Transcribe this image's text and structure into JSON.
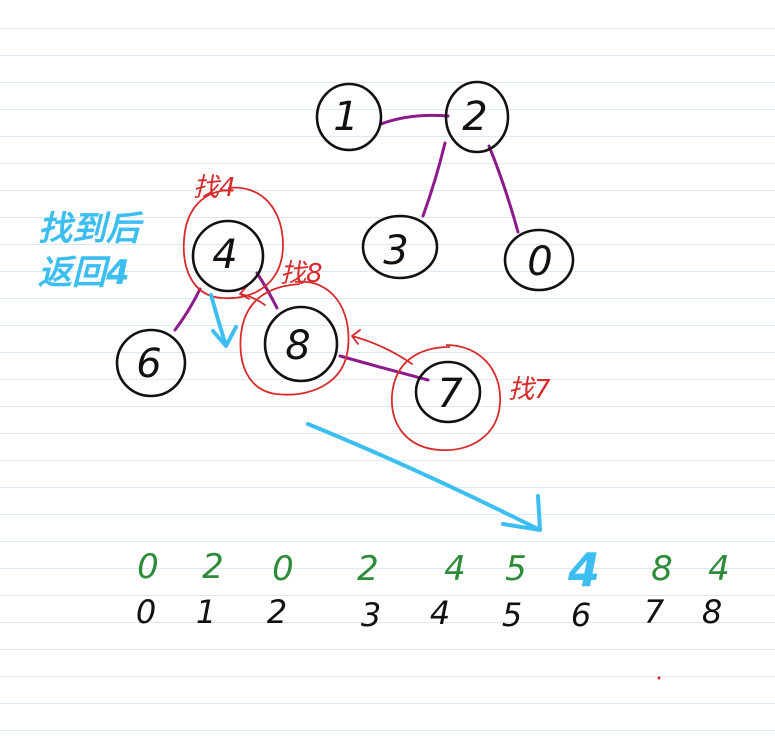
{
  "nodes": [
    {
      "id": "1",
      "label": "1"
    },
    {
      "id": "2",
      "label": "2"
    },
    {
      "id": "3",
      "label": "3"
    },
    {
      "id": "0",
      "label": "0"
    },
    {
      "id": "4",
      "label": "4"
    },
    {
      "id": "6",
      "label": "6"
    },
    {
      "id": "8",
      "label": "8"
    },
    {
      "id": "7",
      "label": "7"
    }
  ],
  "edges": [
    {
      "from": "1",
      "to": "2"
    },
    {
      "from": "2",
      "to": "3"
    },
    {
      "from": "2",
      "to": "0"
    },
    {
      "from": "4",
      "to": "6"
    },
    {
      "from": "4",
      "to": "8"
    },
    {
      "from": "8",
      "to": "7"
    }
  ],
  "annotations": {
    "find_4": "找4",
    "find_8": "找8",
    "find_7": "找7",
    "found_line1": "找到后",
    "found_line2": "返回4"
  },
  "array": {
    "parent_values": [
      "0",
      "2",
      "0",
      "2",
      "4",
      "5",
      "4",
      "8",
      "4"
    ],
    "indices": [
      "0",
      "1",
      "2",
      "3",
      "4",
      "5",
      "6",
      "7",
      "8"
    ],
    "highlighted_index": 6
  },
  "colors": {
    "ink": "#111111",
    "edge": "#8b1a8b",
    "annotation_red": "#d62b2b",
    "annotation_blue": "#3cbff0",
    "parent_green": "#2e8b3a",
    "rule_line": "#dce9f2"
  }
}
